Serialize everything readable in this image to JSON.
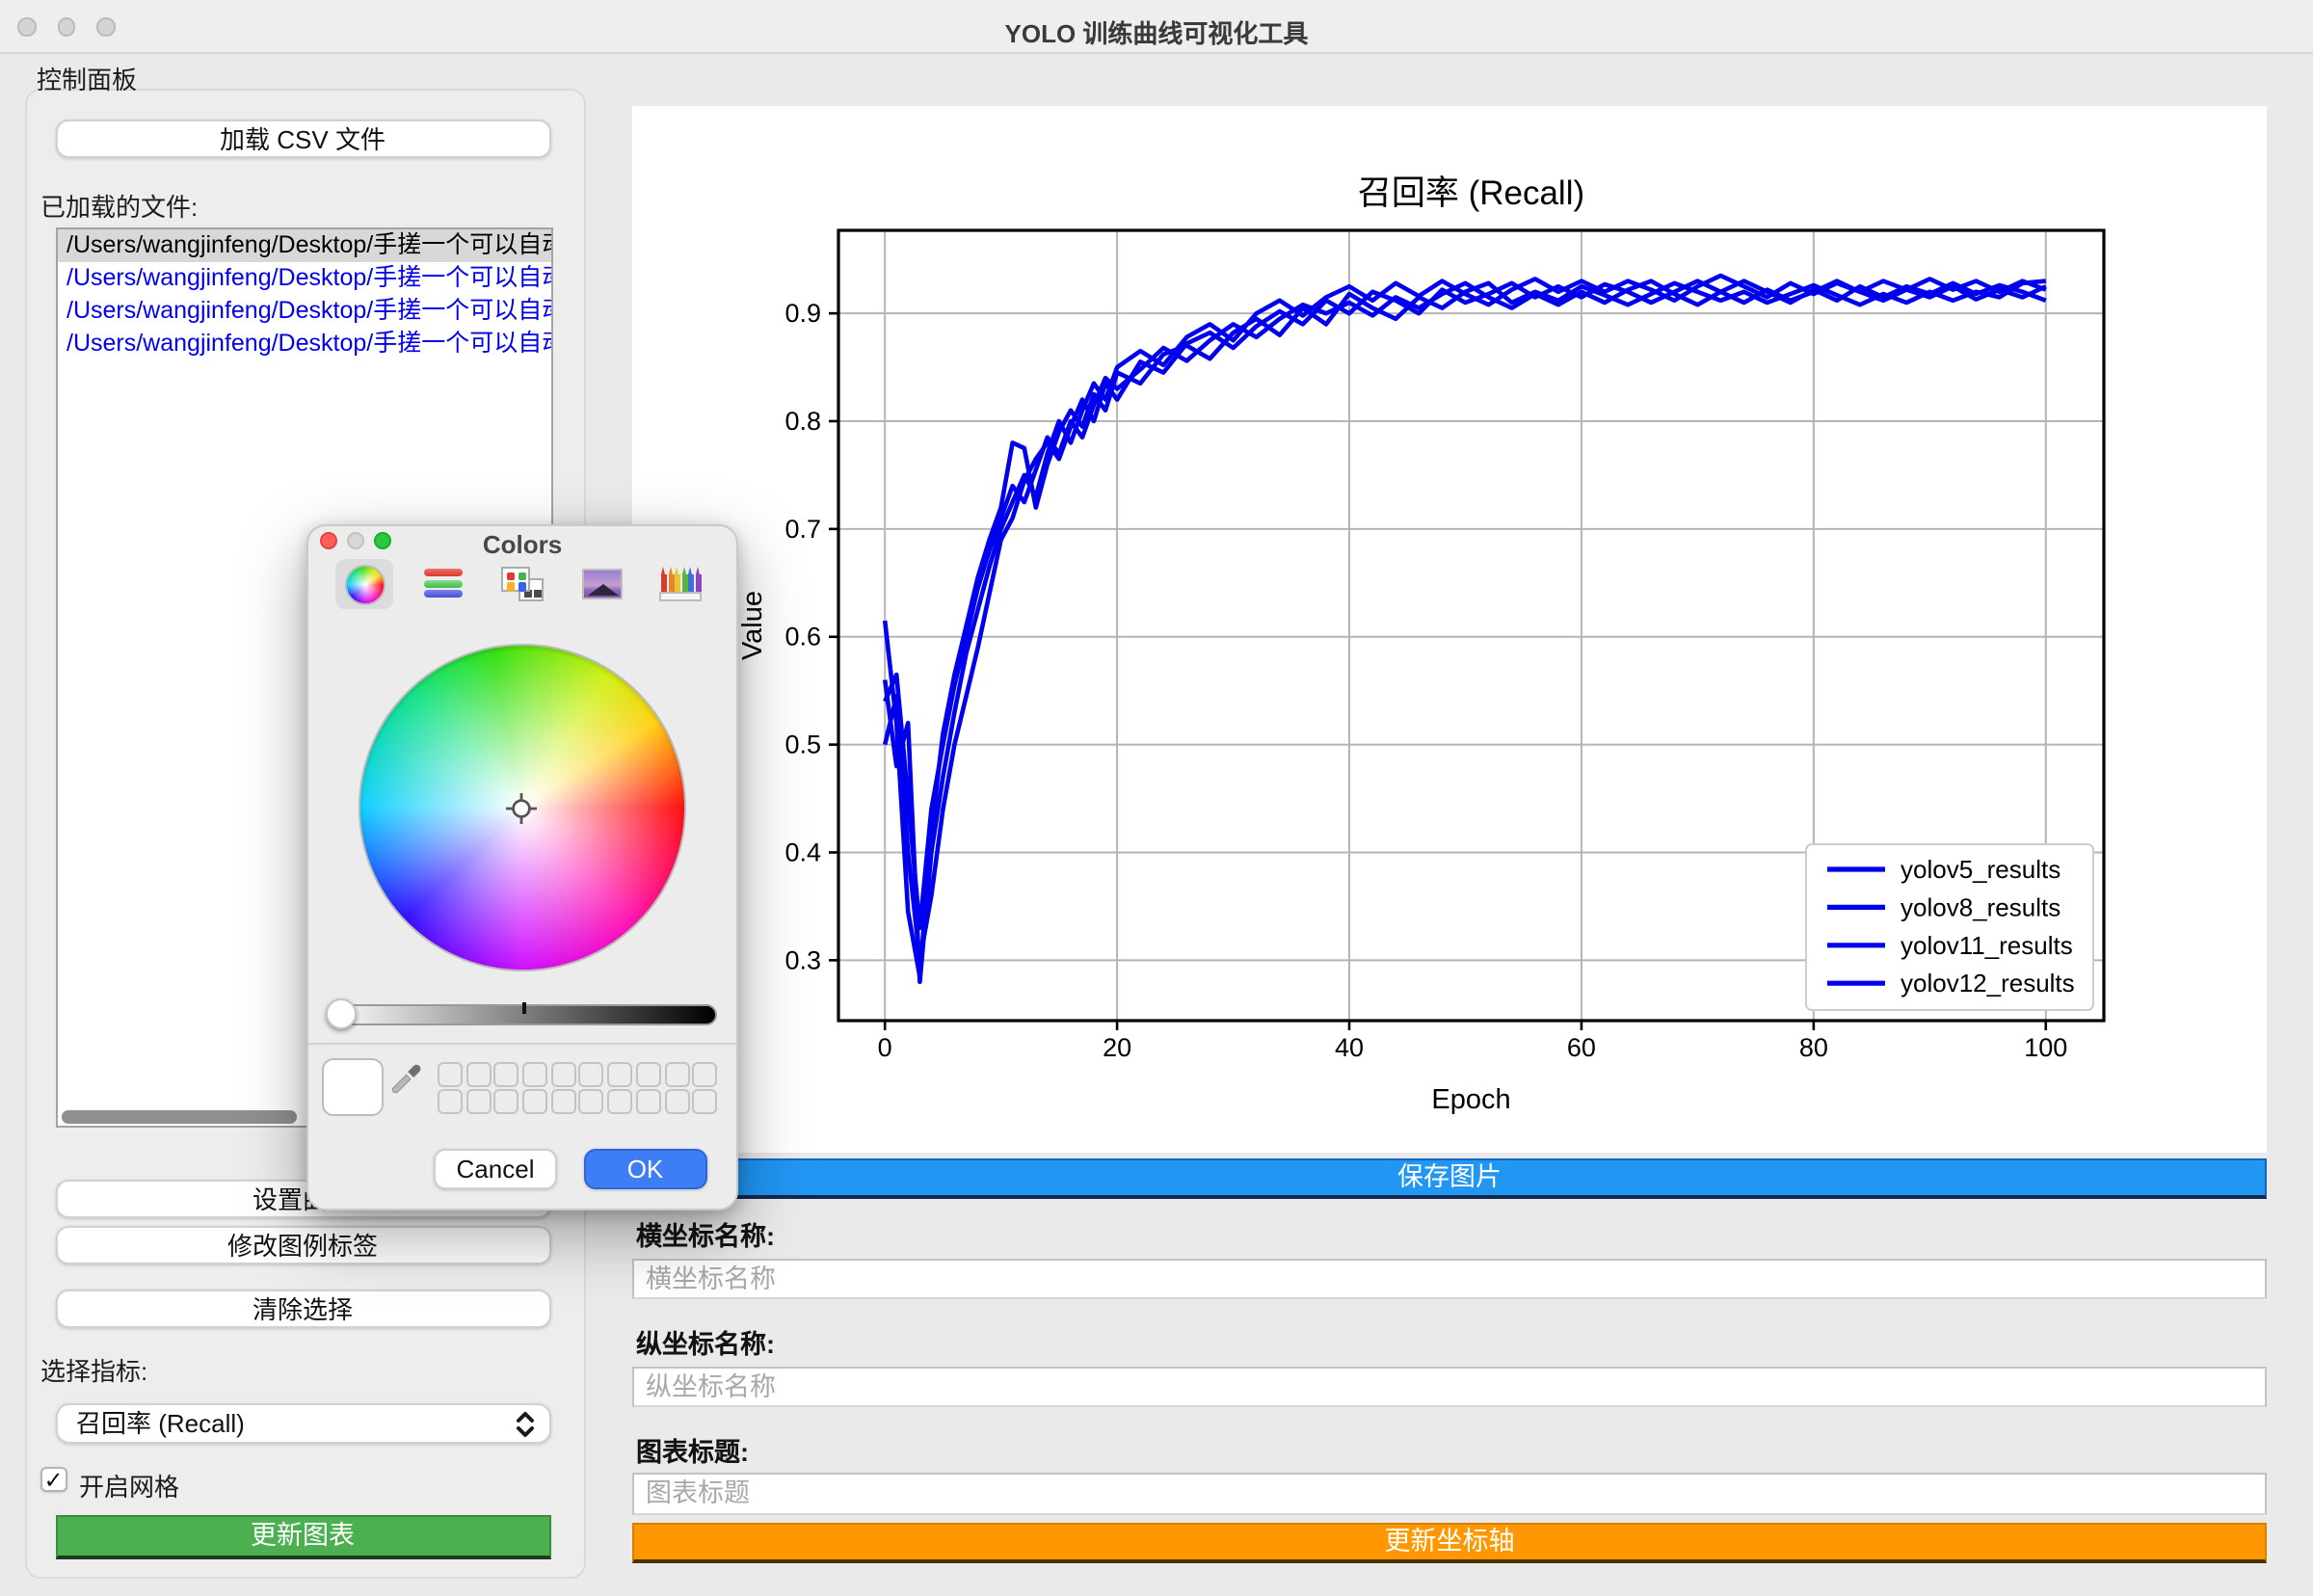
{
  "window": {
    "title": "YOLO 训练曲线可视化工具"
  },
  "control_panel": {
    "title": "控制面板",
    "load_csv_button": "加载 CSV 文件",
    "loaded_files_label": "已加载的文件:",
    "files": [
      "/Users/wangjinfeng/Desktop/手搓一个可以自动",
      "/Users/wangjinfeng/Desktop/手搓一个可以自动",
      "/Users/wangjinfeng/Desktop/手搓一个可以自动",
      "/Users/wangjinfeng/Desktop/手搓一个可以自动"
    ],
    "selected_file_index": 0,
    "set_curve_button": "设置曲线",
    "edit_legend_button": "修改图例标签",
    "clear_selection_button": "清除选择",
    "metric_label": "选择指标:",
    "metric_value": "召回率 (Recall)",
    "grid_checkbox_label": "开启网格",
    "grid_checked": true,
    "grid_checkmark": "✓",
    "update_chart_button": "更新图表"
  },
  "right_panel": {
    "save_image_button": "保存图片",
    "xaxis_label": "横坐标名称:",
    "xaxis_placeholder": "横坐标名称",
    "yaxis_label": "纵坐标名称:",
    "yaxis_placeholder": "纵坐标名称",
    "chart_title_label": "图表标题:",
    "chart_title_placeholder": "图表标题",
    "update_axes_button": "更新坐标轴"
  },
  "color_dialog": {
    "title": "Colors",
    "toolbar_icons": [
      "color-wheel",
      "sliders",
      "palette",
      "image",
      "pencils"
    ],
    "selected_tool": "color-wheel",
    "slider_thumb_position": "left",
    "swatch_grid": {
      "columns": 10,
      "rows": 2
    },
    "cancel_label": "Cancel",
    "ok_label": "OK"
  },
  "colors": {
    "save_button": "#2196f3",
    "update_axes_button": "#ff9800",
    "update_chart_button": "#4caf50",
    "ok_button": "#3d7df5",
    "file_link": "#0000ee",
    "curve": "#0000ee",
    "grid_line": "#b5b5b5"
  },
  "chart_data": {
    "type": "line",
    "title": "召回率 (Recall)",
    "xlabel": "Epoch",
    "ylabel": "Value",
    "xticks": [
      0,
      20,
      40,
      60,
      80,
      100
    ],
    "yticks": [
      0.3,
      0.4,
      0.5,
      0.6,
      0.7,
      0.8,
      0.9
    ],
    "xlim": [
      -4,
      105
    ],
    "ylim": [
      0.244,
      0.977
    ],
    "grid": true,
    "legend_position": "lower right",
    "line_color": "#0000ee",
    "series": [
      {
        "name": "yolov5_results",
        "points": [
          [
            0,
            0.615
          ],
          [
            1,
            0.52
          ],
          [
            2,
            0.345
          ],
          [
            3,
            0.285
          ],
          [
            4,
            0.42
          ],
          [
            5,
            0.51
          ],
          [
            6,
            0.565
          ],
          [
            7,
            0.61
          ],
          [
            8,
            0.655
          ],
          [
            9,
            0.69
          ],
          [
            10,
            0.72
          ],
          [
            11,
            0.78
          ],
          [
            12,
            0.775
          ],
          [
            13,
            0.72
          ],
          [
            14,
            0.76
          ],
          [
            15,
            0.79
          ],
          [
            16,
            0.81
          ],
          [
            17,
            0.795
          ],
          [
            18,
            0.825
          ],
          [
            19,
            0.81
          ],
          [
            20,
            0.845
          ],
          [
            22,
            0.835
          ],
          [
            24,
            0.862
          ],
          [
            26,
            0.87
          ],
          [
            28,
            0.858
          ],
          [
            30,
            0.882
          ],
          [
            32,
            0.895
          ],
          [
            34,
            0.88
          ],
          [
            36,
            0.905
          ],
          [
            38,
            0.89
          ],
          [
            40,
            0.918
          ],
          [
            42,
            0.905
          ],
          [
            44,
            0.895
          ],
          [
            46,
            0.915
          ],
          [
            48,
            0.905
          ],
          [
            50,
            0.92
          ],
          [
            52,
            0.928
          ],
          [
            54,
            0.91
          ],
          [
            56,
            0.92
          ],
          [
            58,
            0.912
          ],
          [
            60,
            0.925
          ],
          [
            62,
            0.917
          ],
          [
            64,
            0.908
          ],
          [
            66,
            0.918
          ],
          [
            68,
            0.928
          ],
          [
            70,
            0.92
          ],
          [
            72,
            0.912
          ],
          [
            74,
            0.92
          ],
          [
            76,
            0.91
          ],
          [
            78,
            0.918
          ],
          [
            80,
            0.926
          ],
          [
            82,
            0.917
          ],
          [
            84,
            0.908
          ],
          [
            86,
            0.918
          ],
          [
            88,
            0.91
          ],
          [
            90,
            0.92
          ],
          [
            92,
            0.912
          ],
          [
            94,
            0.92
          ],
          [
            96,
            0.915
          ],
          [
            98,
            0.928
          ],
          [
            100,
            0.93
          ]
        ]
      },
      {
        "name": "yolov8_results",
        "points": [
          [
            0,
            0.5
          ],
          [
            1,
            0.545
          ],
          [
            2,
            0.4
          ],
          [
            3,
            0.3
          ],
          [
            4,
            0.36
          ],
          [
            5,
            0.44
          ],
          [
            6,
            0.5
          ],
          [
            7,
            0.545
          ],
          [
            8,
            0.59
          ],
          [
            9,
            0.64
          ],
          [
            10,
            0.69
          ],
          [
            11,
            0.71
          ],
          [
            12,
            0.745
          ],
          [
            13,
            0.765
          ],
          [
            14,
            0.78
          ],
          [
            15,
            0.765
          ],
          [
            16,
            0.795
          ],
          [
            17,
            0.82
          ],
          [
            18,
            0.8
          ],
          [
            19,
            0.835
          ],
          [
            20,
            0.82
          ],
          [
            22,
            0.855
          ],
          [
            24,
            0.845
          ],
          [
            26,
            0.872
          ],
          [
            28,
            0.882
          ],
          [
            30,
            0.868
          ],
          [
            32,
            0.888
          ],
          [
            34,
            0.902
          ],
          [
            36,
            0.89
          ],
          [
            38,
            0.912
          ],
          [
            40,
            0.9
          ],
          [
            42,
            0.92
          ],
          [
            44,
            0.912
          ],
          [
            46,
            0.9
          ],
          [
            48,
            0.922
          ],
          [
            50,
            0.91
          ],
          [
            52,
            0.918
          ],
          [
            54,
            0.928
          ],
          [
            56,
            0.915
          ],
          [
            58,
            0.925
          ],
          [
            60,
            0.915
          ],
          [
            62,
            0.927
          ],
          [
            64,
            0.92
          ],
          [
            66,
            0.91
          ],
          [
            68,
            0.92
          ],
          [
            70,
            0.93
          ],
          [
            72,
            0.92
          ],
          [
            74,
            0.91
          ],
          [
            76,
            0.922
          ],
          [
            78,
            0.912
          ],
          [
            80,
            0.92
          ],
          [
            82,
            0.93
          ],
          [
            84,
            0.92
          ],
          [
            86,
            0.912
          ],
          [
            88,
            0.922
          ],
          [
            90,
            0.915
          ],
          [
            92,
            0.925
          ],
          [
            94,
            0.913
          ],
          [
            96,
            0.922
          ],
          [
            98,
            0.915
          ],
          [
            100,
            0.925
          ]
        ]
      },
      {
        "name": "yolov11_results",
        "points": [
          [
            0,
            0.56
          ],
          [
            1,
            0.48
          ],
          [
            2,
            0.52
          ],
          [
            3,
            0.28
          ],
          [
            4,
            0.4
          ],
          [
            5,
            0.47
          ],
          [
            6,
            0.53
          ],
          [
            7,
            0.585
          ],
          [
            8,
            0.625
          ],
          [
            9,
            0.665
          ],
          [
            10,
            0.7
          ],
          [
            11,
            0.725
          ],
          [
            12,
            0.75
          ],
          [
            13,
            0.73
          ],
          [
            14,
            0.77
          ],
          [
            15,
            0.8
          ],
          [
            16,
            0.78
          ],
          [
            17,
            0.81
          ],
          [
            18,
            0.835
          ],
          [
            19,
            0.82
          ],
          [
            20,
            0.85
          ],
          [
            22,
            0.865
          ],
          [
            24,
            0.852
          ],
          [
            26,
            0.878
          ],
          [
            28,
            0.89
          ],
          [
            30,
            0.875
          ],
          [
            32,
            0.9
          ],
          [
            34,
            0.912
          ],
          [
            36,
            0.898
          ],
          [
            38,
            0.915
          ],
          [
            40,
            0.925
          ],
          [
            42,
            0.912
          ],
          [
            44,
            0.928
          ],
          [
            46,
            0.916
          ],
          [
            48,
            0.93
          ],
          [
            50,
            0.918
          ],
          [
            52,
            0.908
          ],
          [
            54,
            0.922
          ],
          [
            56,
            0.932
          ],
          [
            58,
            0.92
          ],
          [
            60,
            0.93
          ],
          [
            62,
            0.92
          ],
          [
            64,
            0.93
          ],
          [
            66,
            0.922
          ],
          [
            68,
            0.912
          ],
          [
            70,
            0.925
          ],
          [
            72,
            0.935
          ],
          [
            74,
            0.925
          ],
          [
            76,
            0.915
          ],
          [
            78,
            0.928
          ],
          [
            80,
            0.918
          ],
          [
            82,
            0.928
          ],
          [
            84,
            0.92
          ],
          [
            86,
            0.93
          ],
          [
            88,
            0.922
          ],
          [
            90,
            0.932
          ],
          [
            92,
            0.922
          ],
          [
            94,
            0.93
          ],
          [
            96,
            0.92
          ],
          [
            98,
            0.93
          ],
          [
            100,
            0.922
          ]
        ]
      },
      {
        "name": "yolov12_results",
        "points": [
          [
            0,
            0.54
          ],
          [
            1,
            0.565
          ],
          [
            2,
            0.45
          ],
          [
            3,
            0.33
          ],
          [
            4,
            0.44
          ],
          [
            5,
            0.5
          ],
          [
            6,
            0.555
          ],
          [
            7,
            0.6
          ],
          [
            8,
            0.645
          ],
          [
            9,
            0.68
          ],
          [
            10,
            0.71
          ],
          [
            11,
            0.74
          ],
          [
            12,
            0.725
          ],
          [
            13,
            0.755
          ],
          [
            14,
            0.785
          ],
          [
            15,
            0.77
          ],
          [
            16,
            0.8
          ],
          [
            17,
            0.785
          ],
          [
            18,
            0.815
          ],
          [
            19,
            0.84
          ],
          [
            20,
            0.83
          ],
          [
            22,
            0.848
          ],
          [
            24,
            0.868
          ],
          [
            26,
            0.856
          ],
          [
            28,
            0.875
          ],
          [
            30,
            0.89
          ],
          [
            32,
            0.878
          ],
          [
            34,
            0.895
          ],
          [
            36,
            0.908
          ],
          [
            38,
            0.9
          ],
          [
            40,
            0.91
          ],
          [
            42,
            0.898
          ],
          [
            44,
            0.915
          ],
          [
            46,
            0.905
          ],
          [
            48,
            0.918
          ],
          [
            50,
            0.928
          ],
          [
            52,
            0.915
          ],
          [
            54,
            0.905
          ],
          [
            56,
            0.918
          ],
          [
            58,
            0.908
          ],
          [
            60,
            0.92
          ],
          [
            62,
            0.91
          ],
          [
            64,
            0.922
          ],
          [
            66,
            0.93
          ],
          [
            68,
            0.918
          ],
          [
            70,
            0.908
          ],
          [
            72,
            0.92
          ],
          [
            74,
            0.93
          ],
          [
            76,
            0.92
          ],
          [
            78,
            0.91
          ],
          [
            80,
            0.922
          ],
          [
            82,
            0.912
          ],
          [
            84,
            0.925
          ],
          [
            86,
            0.915
          ],
          [
            88,
            0.925
          ],
          [
            90,
            0.918
          ],
          [
            92,
            0.928
          ],
          [
            94,
            0.918
          ],
          [
            96,
            0.926
          ],
          [
            98,
            0.92
          ],
          [
            100,
            0.912
          ]
        ]
      }
    ]
  }
}
